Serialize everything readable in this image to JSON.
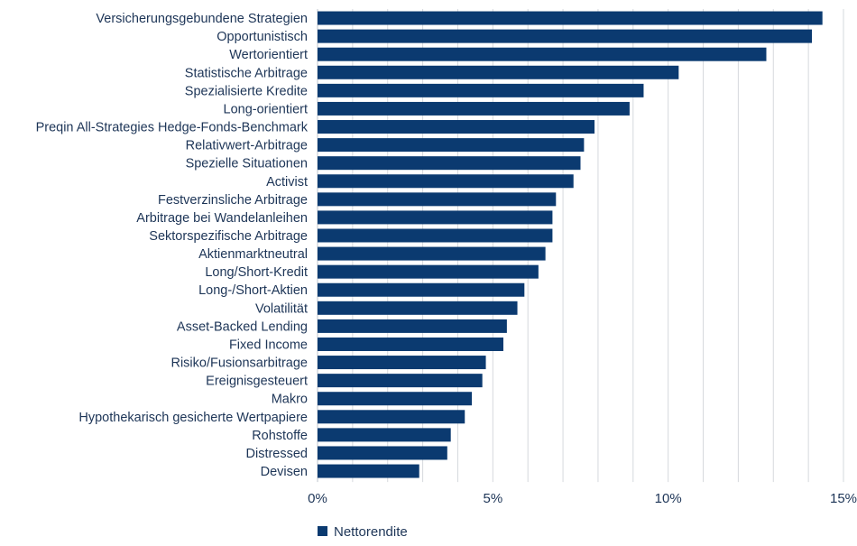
{
  "chart_data": {
    "type": "bar",
    "orientation": "horizontal",
    "title": "",
    "xlabel": "",
    "ylabel": "",
    "xlim": [
      0,
      15
    ],
    "x_ticks": [
      0,
      5,
      10,
      15
    ],
    "x_tick_labels": [
      "0%",
      "5%",
      "10%",
      "15%"
    ],
    "grid": "vertical gridlines every 1%",
    "legend": {
      "placement": "bottom-left",
      "entries": [
        "Nettorendite"
      ]
    },
    "bar_color": "#0b3a70",
    "series": [
      {
        "name": "Nettorendite",
        "values": [
          14.4,
          14.1,
          12.8,
          10.3,
          9.3,
          8.9,
          7.9,
          7.6,
          7.5,
          7.3,
          6.8,
          6.7,
          6.7,
          6.5,
          6.3,
          5.9,
          5.7,
          5.4,
          5.3,
          4.8,
          4.7,
          4.4,
          4.2,
          3.8,
          3.7,
          2.9
        ]
      }
    ],
    "categories": [
      "Versicherungsgebundene Strategien",
      "Opportunistisch",
      "Wertorientiert",
      "Statistische Arbitrage",
      "Spezialisierte Kredite",
      "Long-orientiert",
      "Preqin All-Strategies Hedge-Fonds-Benchmark",
      "Relativwert-Arbitrage",
      "Spezielle Situationen",
      "Activist",
      "Festverzinsliche Arbitrage",
      "Arbitrage bei Wandelanleihen",
      "Sektorspezifische Arbitrage",
      "Aktienmarktneutral",
      "Long/Short-Kredit",
      "Long-/Short-Aktien",
      "Volatilität",
      "Asset-Backed Lending",
      "Fixed Income",
      "Risiko/Fusionsarbitrage",
      "Ereignisgesteuert",
      "Makro",
      "Hypothekarisch gesicherte Wertpapiere",
      "Rohstoffe",
      "Distressed",
      "Devisen"
    ]
  }
}
